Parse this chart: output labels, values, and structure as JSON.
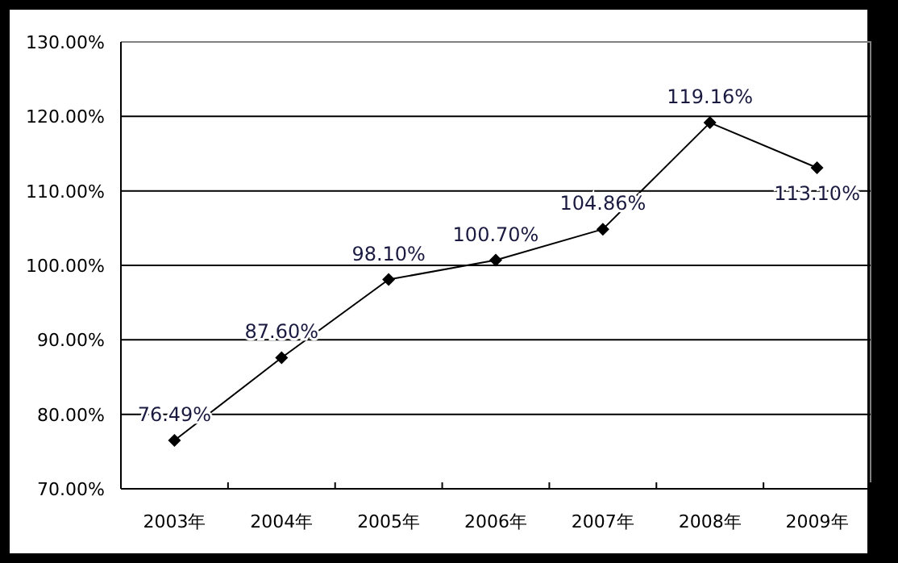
{
  "chart_data": {
    "type": "line",
    "categories": [
      "2003年",
      "2004年",
      "2005年",
      "2006年",
      "2007年",
      "2008年",
      "2009年"
    ],
    "series": [
      {
        "color": "#000000",
        "values": [
          76.49,
          87.6,
          98.1,
          100.7,
          104.86,
          119.16,
          113.1
        ],
        "value_labels": [
          "76.49%",
          "87.60%",
          "98.10%",
          "100.70%",
          "104.86%",
          "119.16%",
          "113.10%"
        ]
      }
    ],
    "ylim": [
      70,
      130
    ],
    "yticks": [
      {
        "value": 70,
        "label": "70.00%"
      },
      {
        "value": 80,
        "label": "80.00%"
      },
      {
        "value": 90,
        "label": "90.00%"
      },
      {
        "value": 100,
        "label": "100.00%"
      },
      {
        "value": 110,
        "label": "110.00%"
      },
      {
        "value": 120,
        "label": "120.00%"
      },
      {
        "value": 130,
        "label": "130.00%"
      }
    ],
    "grid": "y",
    "marker": "diamond",
    "line_style": "solid"
  }
}
